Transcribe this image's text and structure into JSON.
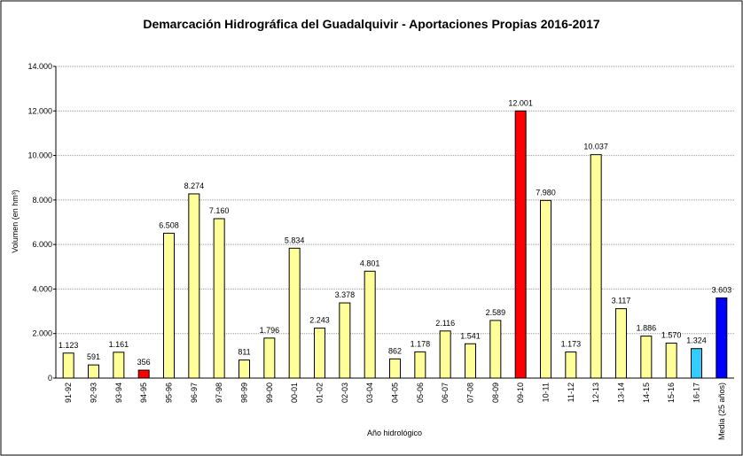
{
  "chart_data": {
    "type": "bar",
    "title": "Demarcación Hidrográfica del Guadalquivir - Aportaciones Propias 2016-2017",
    "x_label": "Año hidrológico",
    "y_label": "Volumen (en hm³)",
    "categories": [
      "91-92",
      "92-93",
      "93-94",
      "94-95",
      "95-96",
      "96-97",
      "97-98",
      "98-99",
      "99-00",
      "00-01",
      "01-02",
      "02-03",
      "03-04",
      "04-05",
      "05-06",
      "06-07",
      "07-08",
      "08-09",
      "09-10",
      "10-11",
      "11-12",
      "12-13",
      "13-14",
      "14-15",
      "15-16",
      "16-17",
      "Media (25 años)"
    ],
    "values": [
      1123,
      591,
      1161,
      356,
      6508,
      8274,
      7160,
      811,
      1796,
      5834,
      2243,
      3378,
      4801,
      862,
      1178,
      2116,
      1541,
      2589,
      12001,
      7980,
      1173,
      10037,
      3117,
      1886,
      1570,
      1324,
      3603
    ],
    "value_labels": [
      "1.123",
      "591",
      "1.161",
      "356",
      "6.508",
      "8.274",
      "7.160",
      "811",
      "1.796",
      "5.834",
      "2.243",
      "3.378",
      "4.801",
      "862",
      "1.178",
      "2.116",
      "1.541",
      "2.589",
      "12.001",
      "7.980",
      "1.173",
      "10.037",
      "3.117",
      "1.886",
      "1.570",
      "1.324",
      "3.603"
    ],
    "colors": [
      "#ffff99",
      "#ffff99",
      "#ffff99",
      "#ff0000",
      "#ffff99",
      "#ffff99",
      "#ffff99",
      "#ffff99",
      "#ffff99",
      "#ffff99",
      "#ffff99",
      "#ffff99",
      "#ffff99",
      "#ffff99",
      "#ffff99",
      "#ffff99",
      "#ffff99",
      "#ffff99",
      "#ff0000",
      "#ffff99",
      "#ffff99",
      "#ffff99",
      "#ffff99",
      "#ffff99",
      "#ffff99",
      "#33ccff",
      "#0000ff"
    ],
    "ylim": [
      0,
      14000
    ],
    "yticks": [
      0,
      {
        "value": 2000,
        "label": "2.000"
      },
      {
        "value": 4000,
        "label": "4.000"
      },
      {
        "value": 6000,
        "label": "6.000"
      },
      {
        "value": 8000,
        "label": "8.000"
      },
      {
        "value": 10000,
        "label": "10.000"
      },
      {
        "value": 12000,
        "label": "12.000"
      },
      {
        "value": 14000,
        "label": "14.000"
      }
    ],
    "grid": true
  }
}
